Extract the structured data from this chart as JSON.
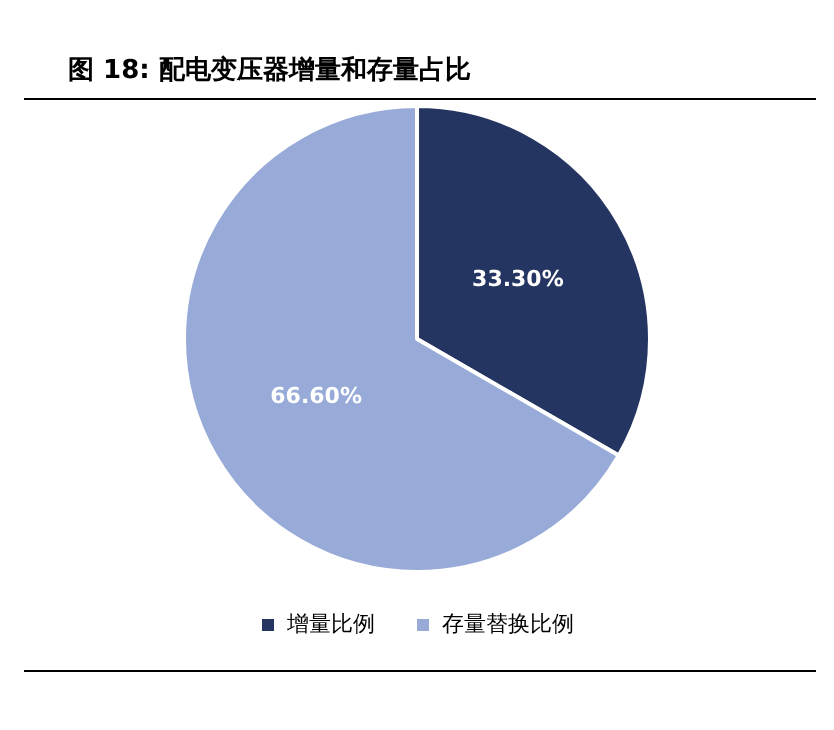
{
  "chart_data": {
    "type": "pie",
    "title": "图 18: 配电变压器增量和存量占比",
    "categories": [
      "增量比例",
      "存量替换比例"
    ],
    "values": [
      33.3,
      66.6
    ],
    "colors": [
      "#253561",
      "#97aad8"
    ],
    "value_labels": [
      "33.30%",
      "66.60%"
    ],
    "legend": "bottom"
  }
}
